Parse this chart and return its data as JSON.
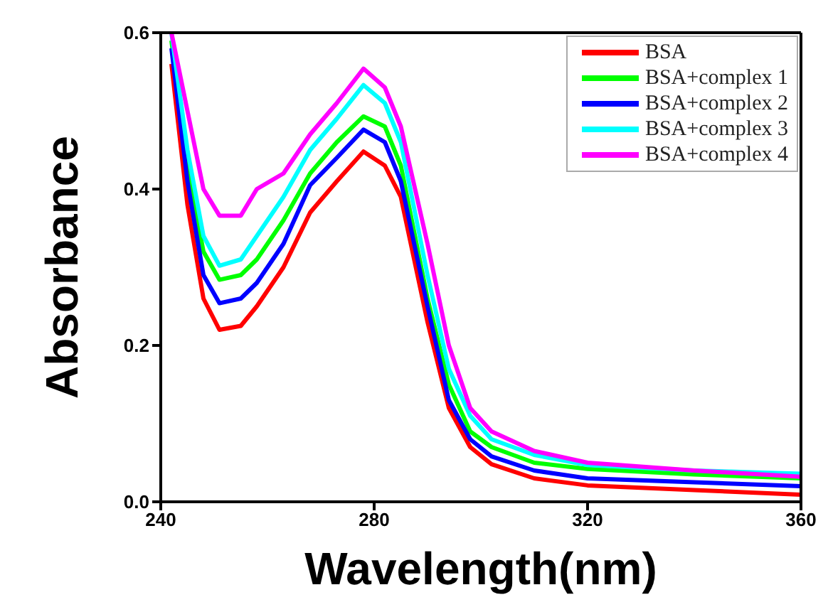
{
  "chart_data": {
    "type": "line",
    "xlabel": "Wavelength(nm)",
    "ylabel": "Absorbance",
    "x": [
      242,
      245,
      248,
      251,
      255,
      258,
      263,
      268,
      273,
      278,
      282,
      285,
      290,
      294,
      298,
      302,
      310,
      320,
      340,
      360
    ],
    "xlim": [
      240,
      360
    ],
    "xticks": [
      240,
      280,
      320,
      360
    ],
    "ylim": [
      0,
      0.6
    ],
    "yticks": [
      {
        "value": 0,
        "label": "0.0"
      },
      {
        "value": 0.2,
        "label": "0.2"
      },
      {
        "value": 0.4,
        "label": "0.4"
      },
      {
        "value": 0.6,
        "label": "0.6"
      }
    ],
    "grid": false,
    "legend": "top right",
    "marker": "none",
    "line_style": "solid",
    "series": [
      {
        "name": "BSA",
        "color": "#ff0000",
        "values": [
          0.56,
          0.38,
          0.26,
          0.22,
          0.225,
          0.25,
          0.3,
          0.37,
          0.41,
          0.448,
          0.43,
          0.39,
          0.23,
          0.12,
          0.07,
          0.048,
          0.03,
          0.021,
          0.015,
          0.009
        ]
      },
      {
        "name": "BSA+complex 1",
        "color": "#00ff00",
        "values": [
          0.59,
          0.43,
          0.32,
          0.284,
          0.29,
          0.31,
          0.36,
          0.42,
          0.46,
          0.493,
          0.48,
          0.43,
          0.26,
          0.15,
          0.09,
          0.07,
          0.05,
          0.042,
          0.035,
          0.03
        ]
      },
      {
        "name": "BSA+complex 2",
        "color": "#0000ff",
        "values": [
          0.58,
          0.41,
          0.29,
          0.254,
          0.26,
          0.28,
          0.33,
          0.405,
          0.44,
          0.476,
          0.46,
          0.41,
          0.25,
          0.13,
          0.08,
          0.058,
          0.04,
          0.03,
          0.025,
          0.02
        ]
      },
      {
        "name": "BSA+complex 3",
        "color": "#00ffff",
        "values": [
          0.6,
          0.45,
          0.34,
          0.302,
          0.31,
          0.34,
          0.39,
          0.45,
          0.49,
          0.533,
          0.51,
          0.46,
          0.29,
          0.17,
          0.11,
          0.08,
          0.06,
          0.047,
          0.04,
          0.036
        ]
      },
      {
        "name": "BSA+complex 4",
        "color": "#ff00ff",
        "values": [
          0.6,
          0.5,
          0.4,
          0.366,
          0.366,
          0.4,
          0.42,
          0.47,
          0.51,
          0.554,
          0.53,
          0.48,
          0.33,
          0.2,
          0.12,
          0.09,
          0.065,
          0.05,
          0.04,
          0.032
        ]
      }
    ]
  }
}
